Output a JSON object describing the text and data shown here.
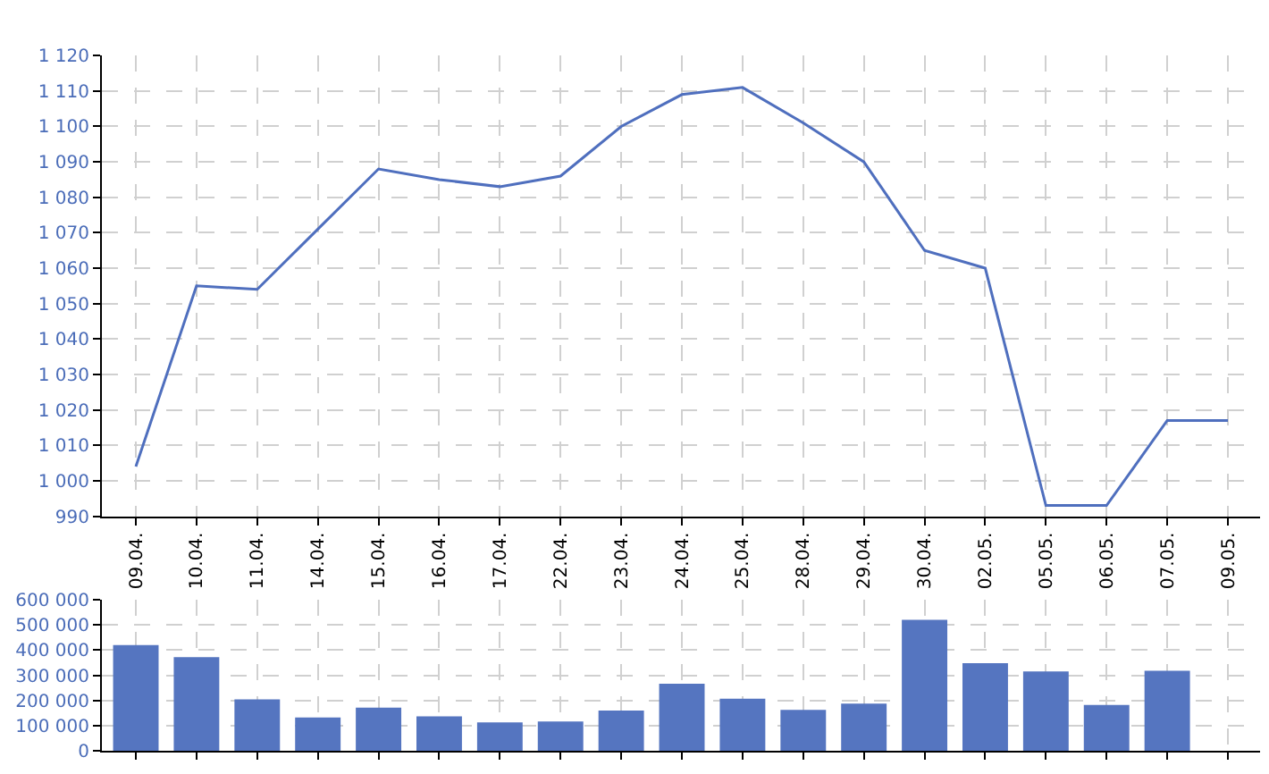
{
  "chart_data": [
    {
      "type": "line",
      "categories": [
        "09.04.",
        "10.04.",
        "11.04.",
        "14.04.",
        "15.04.",
        "16.04.",
        "17.04.",
        "22.04.",
        "23.04.",
        "24.04.",
        "25.04.",
        "28.04.",
        "29.04.",
        "30.04.",
        "02.05.",
        "05.05.",
        "06.05.",
        "07.05.",
        "09.05."
      ],
      "values": [
        1004,
        1055,
        1054,
        1071,
        1088,
        1085,
        1083,
        1086,
        1100,
        1109,
        1111,
        1101,
        1090,
        1065,
        1060,
        993,
        993,
        1017,
        1017
      ],
      "color": "#4f6fbe",
      "ylim": [
        990,
        1120
      ],
      "yticks": [
        990,
        {
          "value": 1000,
          "label": "1 000"
        },
        {
          "value": 1010,
          "label": "1 010"
        },
        {
          "value": 1020,
          "label": "1 020"
        },
        {
          "value": 1030,
          "label": "1 030"
        },
        {
          "value": 1040,
          "label": "1 040"
        },
        {
          "value": 1050,
          "label": "1 050"
        },
        {
          "value": 1060,
          "label": "1 060"
        },
        {
          "value": 1070,
          "label": "1 070"
        },
        {
          "value": 1080,
          "label": "1 080"
        },
        {
          "value": 1090,
          "label": "1 090"
        },
        {
          "value": 1100,
          "label": "1 100"
        },
        {
          "value": 1110,
          "label": "1 110"
        },
        {
          "value": 1120,
          "label": "1 120"
        }
      ],
      "grid": true,
      "line_style": "solid",
      "marker": "none"
    },
    {
      "type": "bar",
      "categories": [
        "09.04.",
        "10.04.",
        "11.04.",
        "14.04.",
        "15.04.",
        "16.04.",
        "17.04.",
        "22.04.",
        "23.04.",
        "24.04.",
        "25.04.",
        "28.04.",
        "29.04.",
        "30.04.",
        "02.05.",
        "05.05.",
        "06.05.",
        "07.05.",
        "09.05."
      ],
      "values": [
        420000,
        372000,
        205000,
        133000,
        172000,
        137000,
        113000,
        117000,
        160000,
        267000,
        207000,
        163000,
        188000,
        520000,
        348000,
        315000,
        182000,
        318000,
        null
      ],
      "color": "#5575c0",
      "ylim": [
        0,
        600000
      ],
      "yticks": [
        0,
        {
          "value": 100000,
          "label": "100 000"
        },
        {
          "value": 200000,
          "label": "200 000"
        },
        {
          "value": 300000,
          "label": "300 000"
        },
        {
          "value": 400000,
          "label": "400 000"
        },
        {
          "value": 500000,
          "label": "500 000"
        },
        {
          "value": 600000,
          "label": "600 000"
        }
      ],
      "grid": true,
      "tick_labels": "y"
    }
  ]
}
